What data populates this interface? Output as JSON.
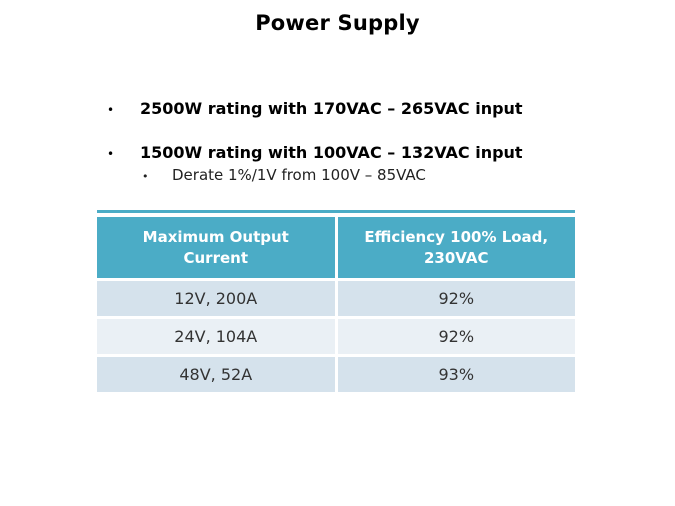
{
  "title": "Power Supply",
  "bullets": {
    "marker": "•",
    "item1": "2500W rating with 170VAC – 265VAC input",
    "item2": "1500W rating with 100VAC – 132VAC input",
    "item2_sub": "Derate 1%/1V from 100V – 85VAC"
  },
  "table": {
    "headers": [
      "Maximum Output Current",
      "Efficiency 100% Load, 230VAC"
    ],
    "rows": [
      [
        "12V, 200A",
        "92%"
      ],
      [
        "24V, 104A",
        "92%"
      ],
      [
        "48V, 52A",
        "93%"
      ]
    ]
  },
  "colors": {
    "header_fill": "#4BACC6",
    "header_text": "#FFFFFF",
    "band_a": "#D5E2EC",
    "band_b": "#EAF0F5",
    "body_text": "#333333"
  }
}
